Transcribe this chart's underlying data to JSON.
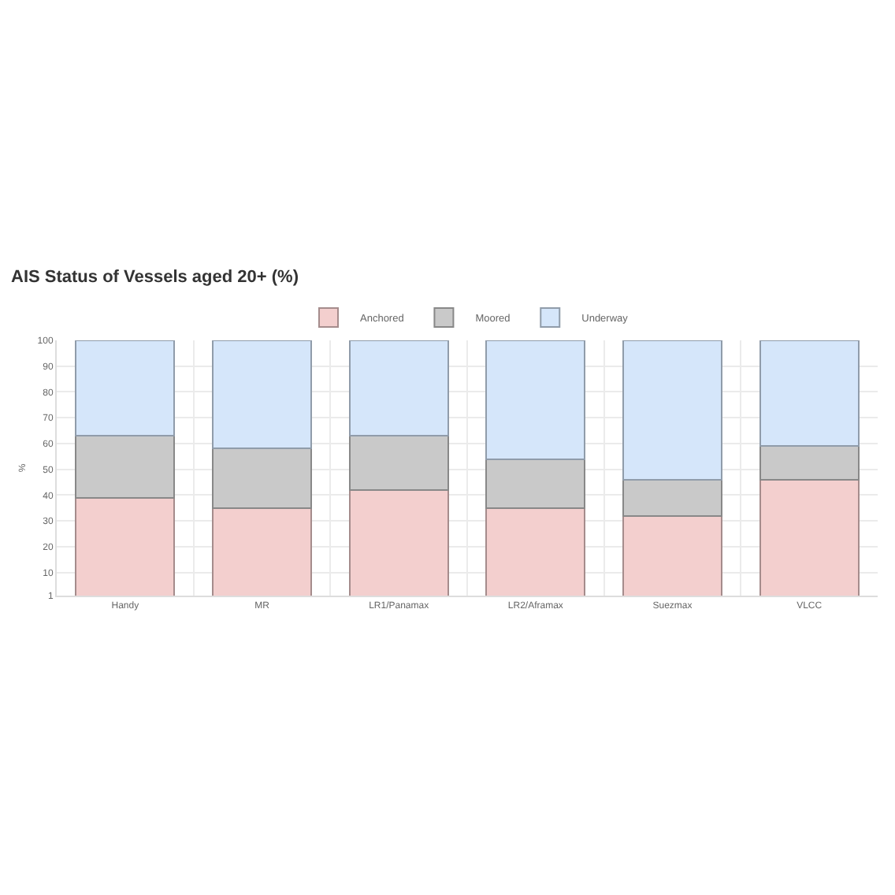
{
  "chart_data": {
    "type": "bar",
    "title": "AIS Status of Vessels aged 20+ (%)",
    "ylabel": "%",
    "categories": [
      "Handy",
      "MR",
      "LR1/Panamax",
      "LR2/Aframax",
      "Suezmax",
      "VLCC"
    ],
    "stacked": true,
    "series": [
      {
        "name": "Anchored",
        "color": "#f3cfce",
        "values": [
          39,
          35,
          42,
          35,
          32,
          46
        ]
      },
      {
        "name": "Moored",
        "color": "#c9c9c9",
        "values": [
          24,
          23,
          21,
          19,
          14,
          13
        ]
      },
      {
        "name": "Underway",
        "color": "#d5e6fa",
        "values": [
          37,
          42,
          37,
          46,
          54,
          41
        ]
      }
    ],
    "ylim": [
      1,
      100
    ],
    "yticks": [
      1,
      10,
      20,
      30,
      40,
      50,
      60,
      70,
      80,
      90,
      100
    ],
    "grid": true,
    "legend": "top"
  }
}
